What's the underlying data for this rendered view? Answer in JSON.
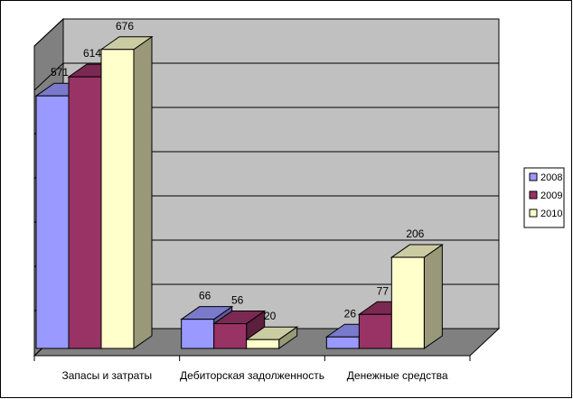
{
  "chart_data": {
    "type": "bar",
    "categories": [
      "Запасы и затраты",
      "Дебиторская задолженность",
      "Денежные средства"
    ],
    "series": [
      {
        "name": "2008",
        "values": [
          571,
          66,
          26
        ],
        "color": "#9999ff",
        "top_color": "#7a7acc",
        "side_color": "#5c5c99"
      },
      {
        "name": "2009",
        "values": [
          614,
          56,
          77
        ],
        "color": "#993366",
        "top_color": "#7a2952",
        "side_color": "#5c1f3d"
      },
      {
        "name": "2010",
        "values": [
          676,
          20,
          206
        ],
        "color": "#ffffcc",
        "top_color": "#ccccA3",
        "side_color": "#99997a"
      }
    ],
    "ylim": [
      0,
      700
    ],
    "grid": true,
    "legend_position": "right",
    "wall_color": "#c0c0c0",
    "floor_color": "#808080"
  }
}
